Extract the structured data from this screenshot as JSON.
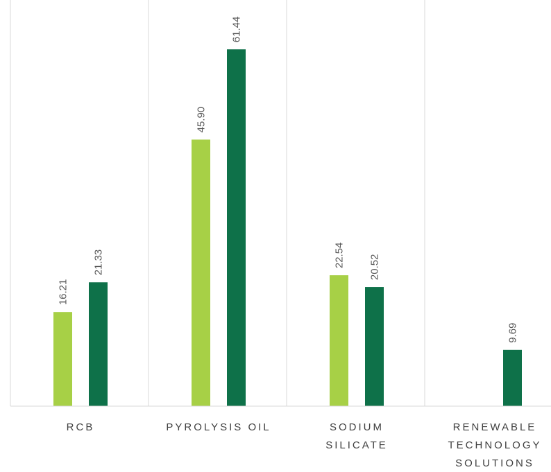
{
  "chart_data": {
    "type": "bar",
    "categories": [
      [
        "RCB"
      ],
      [
        "PYROLYSIS OIL"
      ],
      [
        "SODIUM",
        "SILICATE"
      ],
      [
        "RENEWABLE",
        "TECHNOLOGY",
        "SOLUTIONS"
      ]
    ],
    "series": [
      {
        "color": "#a7d046",
        "values": [
          16.21,
          45.9,
          22.54,
          null
        ]
      },
      {
        "color": "#0e7149",
        "values": [
          21.33,
          61.44,
          20.52,
          9.69
        ]
      }
    ],
    "value_labels": [
      [
        "16.21",
        "45.90",
        "22.54",
        ""
      ],
      [
        "21.33",
        "61.44",
        "20.52",
        "9.69"
      ]
    ],
    "ylim": [
      0,
      70
    ],
    "grid": false,
    "category_separators": true
  }
}
